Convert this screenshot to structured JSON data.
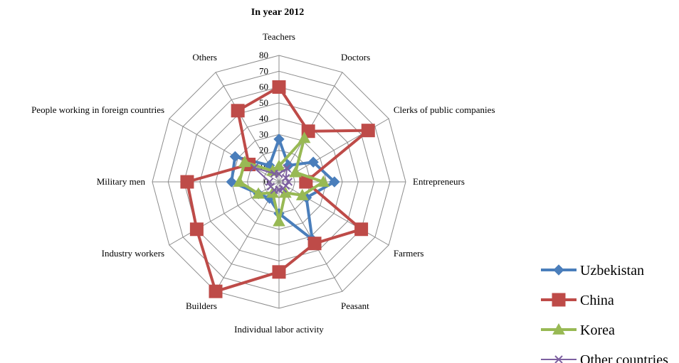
{
  "chart_data": {
    "type": "radar",
    "title": "In year 2012",
    "categories": [
      "Teachers",
      "Doctors",
      "Clerks of public companies",
      "Entrepreneurs",
      "Farmers",
      "Peasant",
      "Individual labor activity",
      "Builders",
      "Industry workers",
      "Military men",
      "People working in foreign countries",
      "Others"
    ],
    "rlim": [
      0,
      80
    ],
    "ticks": [
      0,
      10,
      20,
      30,
      40,
      50,
      60,
      70,
      80
    ],
    "grid": true,
    "legend_position": "bottom-right",
    "series": [
      {
        "name": "Uzbekistan",
        "color": "#4a7ebb",
        "marker": "diamond",
        "values": [
          27,
          12,
          25,
          35,
          20,
          42,
          20,
          12,
          15,
          30,
          32,
          12
        ]
      },
      {
        "name": "China",
        "color": "#be4b48",
        "marker": "square",
        "values": [
          60,
          37,
          65,
          17,
          60,
          45,
          57,
          80,
          60,
          58,
          22,
          52
        ]
      },
      {
        "name": "Korea",
        "color": "#98b954",
        "marker": "triangle",
        "values": [
          10,
          32,
          12,
          28,
          17,
          8,
          25,
          8,
          15,
          25,
          25,
          8
        ]
      },
      {
        "name": "Other countries",
        "color": "#7d60a0",
        "marker": "x",
        "values": [
          5,
          10,
          5,
          6,
          5,
          5,
          5,
          6,
          6,
          6,
          18,
          6
        ]
      }
    ]
  }
}
